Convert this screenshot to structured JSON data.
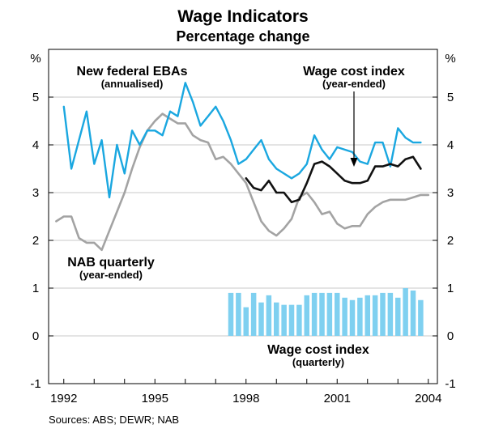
{
  "chart_data": {
    "type": "line",
    "title": "Wage Indicators",
    "subtitle": "Percentage change",
    "unit_left": "%",
    "unit_right": "%",
    "source": "Sources: ABS; DEWR; NAB",
    "ylim": [
      -1,
      6
    ],
    "xlim": [
      1991.5,
      2004.3
    ],
    "y_ticks": [
      "-1",
      "0",
      "1",
      "2",
      "3",
      "4",
      "5"
    ],
    "y_tick_values": [
      -1,
      0,
      1,
      2,
      3,
      4,
      5
    ],
    "x_ticks": [
      "1992",
      "1995",
      "1998",
      "2001",
      "2004"
    ],
    "x_tick_values": [
      1992,
      1995,
      1998,
      2001,
      2004
    ],
    "annotations": {
      "ebas": {
        "title": "New federal EBAs",
        "note": "(annualised)"
      },
      "wci": {
        "title": "Wage cost index",
        "note": "(year-ended)"
      },
      "nab": {
        "title": "NAB quarterly",
        "note": "(year-ended)"
      },
      "wciq": {
        "title": "Wage cost index",
        "note": "(quarterly)"
      }
    },
    "colors": {
      "ebas": "#1aa7e0",
      "nab": "#a3a3a3",
      "wci": "#111111",
      "wciq": "#7fd0f0",
      "grid": "#c8c8c8",
      "axis": "#000000"
    },
    "series": [
      {
        "name": "New federal EBAs (annualised)",
        "key": "ebas",
        "x": [
          1992.0,
          1992.25,
          1992.5,
          1992.75,
          1993.0,
          1993.25,
          1993.5,
          1993.75,
          1994.0,
          1994.25,
          1994.5,
          1994.75,
          1995.0,
          1995.25,
          1995.5,
          1995.75,
          1996.0,
          1996.25,
          1996.5,
          1996.75,
          1997.0,
          1997.25,
          1997.5,
          1997.75,
          1998.0,
          1998.25,
          1998.5,
          1998.75,
          1999.0,
          1999.25,
          1999.5,
          1999.75,
          2000.0,
          2000.25,
          2000.5,
          2000.75,
          2001.0,
          2001.25,
          2001.5,
          2001.75,
          2002.0,
          2002.25,
          2002.5,
          2002.75,
          2003.0,
          2003.25,
          2003.5,
          2003.75
        ],
        "values": [
          4.8,
          3.5,
          4.1,
          4.7,
          3.6,
          4.1,
          2.9,
          4.0,
          3.4,
          4.3,
          4.0,
          4.3,
          4.3,
          4.2,
          4.7,
          4.6,
          5.3,
          4.9,
          4.4,
          4.6,
          4.8,
          4.5,
          4.1,
          3.6,
          3.7,
          3.9,
          4.1,
          3.7,
          3.5,
          3.4,
          3.3,
          3.4,
          3.6,
          4.2,
          3.9,
          3.7,
          3.95,
          3.9,
          3.85,
          3.65,
          3.6,
          4.05,
          4.05,
          3.55,
          4.35,
          4.15,
          4.05,
          4.05
        ]
      },
      {
        "name": "NAB quarterly (year-ended)",
        "key": "nab",
        "x": [
          1991.75,
          1992.0,
          1992.25,
          1992.5,
          1992.75,
          1993.0,
          1993.25,
          1993.5,
          1993.75,
          1994.0,
          1994.25,
          1994.5,
          1994.75,
          1995.0,
          1995.25,
          1995.5,
          1995.75,
          1996.0,
          1996.25,
          1996.5,
          1996.75,
          1997.0,
          1997.25,
          1997.5,
          1997.75,
          1998.0,
          1998.25,
          1998.5,
          1998.75,
          1999.0,
          1999.25,
          1999.5,
          1999.75,
          2000.0,
          2000.25,
          2000.5,
          2000.75,
          2001.0,
          2001.25,
          2001.5,
          2001.75,
          2002.0,
          2002.25,
          2002.5,
          2002.75,
          2003.0,
          2003.25,
          2003.5,
          2003.75,
          2004.0
        ],
        "values": [
          2.4,
          2.5,
          2.5,
          2.05,
          1.95,
          1.95,
          1.8,
          2.2,
          2.6,
          3.0,
          3.5,
          3.95,
          4.3,
          4.5,
          4.65,
          4.55,
          4.45,
          4.45,
          4.2,
          4.1,
          4.05,
          3.7,
          3.75,
          3.6,
          3.4,
          3.2,
          2.8,
          2.4,
          2.2,
          2.1,
          2.25,
          2.45,
          2.9,
          3.0,
          2.8,
          2.55,
          2.6,
          2.35,
          2.25,
          2.3,
          2.3,
          2.55,
          2.7,
          2.8,
          2.85,
          2.85,
          2.85,
          2.9,
          2.95,
          2.95
        ]
      },
      {
        "name": "Wage cost index (year-ended)",
        "key": "wci",
        "x": [
          1998.0,
          1998.25,
          1998.5,
          1998.75,
          1999.0,
          1999.25,
          1999.5,
          1999.75,
          2000.0,
          2000.25,
          2000.5,
          2000.75,
          2001.0,
          2001.25,
          2001.5,
          2001.75,
          2002.0,
          2002.25,
          2002.5,
          2002.75,
          2003.0,
          2003.25,
          2003.5,
          2003.75
        ],
        "values": [
          3.3,
          3.1,
          3.05,
          3.25,
          3.0,
          3.0,
          2.8,
          2.85,
          3.2,
          3.6,
          3.65,
          3.55,
          3.4,
          3.25,
          3.2,
          3.2,
          3.25,
          3.55,
          3.55,
          3.6,
          3.55,
          3.7,
          3.75,
          3.5
        ]
      }
    ],
    "bars": {
      "name": "Wage cost index (quarterly)",
      "key": "wciq",
      "x": [
        1997.5,
        1997.75,
        1998.0,
        1998.25,
        1998.5,
        1998.75,
        1999.0,
        1999.25,
        1999.5,
        1999.75,
        2000.0,
        2000.25,
        2000.5,
        2000.75,
        2001.0,
        2001.25,
        2001.5,
        2001.75,
        2002.0,
        2002.25,
        2002.5,
        2002.75,
        2003.0,
        2003.25,
        2003.5,
        2003.75
      ],
      "values": [
        0.9,
        0.9,
        0.6,
        0.9,
        0.7,
        0.85,
        0.7,
        0.65,
        0.65,
        0.65,
        0.85,
        0.9,
        0.9,
        0.9,
        0.9,
        0.8,
        0.75,
        0.8,
        0.85,
        0.85,
        0.9,
        0.9,
        0.8,
        1.0,
        0.95,
        0.75
      ]
    }
  }
}
